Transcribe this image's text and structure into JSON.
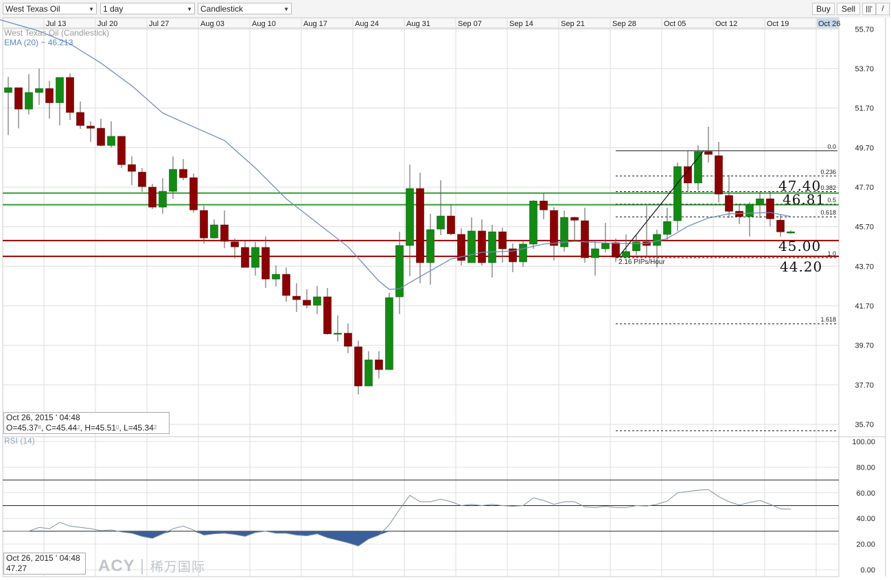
{
  "toolbar": {
    "instrument": "West Texas Oil",
    "interval": "1 day",
    "chart_type": "Candlestick",
    "buy_label": "Buy",
    "sell_label": "Sell",
    "icons": [
      "bar-chart-icon",
      "draw-line-icon"
    ]
  },
  "legend": {
    "series_label": "West Texas Oil (Candlestick)",
    "ema_label": "EMA (20) ~ 46.213",
    "rsi_label": "RSI (14)"
  },
  "info": {
    "datetime": "Oct 26, 2015 ' 04:48",
    "ohlc": [
      {
        "k": "O=",
        "v": "45.37",
        "s": "8"
      },
      {
        "k": ", C=",
        "v": "45.44",
        "s": "2"
      },
      {
        "k": ", H=",
        "v": "45.51",
        "s": "0"
      },
      {
        "k": ", L=",
        "v": "45.34",
        "s": "2"
      }
    ],
    "rsi_datetime": "Oct 26, 2015 ' 04:48",
    "rsi_value": "47.27"
  },
  "annotations": {
    "levels": [
      {
        "label": "47.40",
        "value": 47.4,
        "color": "#2e9e2e"
      },
      {
        "label": "46.81",
        "value": 46.81,
        "color": "#2e9e2e"
      },
      {
        "label": "45.00",
        "value": 45.0,
        "color": "#a00000"
      },
      {
        "label": "44.20",
        "value": 44.2,
        "color": "#a00000"
      }
    ],
    "fib": {
      "high": 49.54,
      "low": 44.13,
      "levels": [
        {
          "ratio": 0.0,
          "label": "0.0"
        },
        {
          "ratio": 0.236,
          "label": "0.236"
        },
        {
          "ratio": 0.382,
          "label": "0.382"
        },
        {
          "ratio": 0.5,
          "label": "0.5"
        },
        {
          "ratio": 0.618,
          "label": "0.618"
        },
        {
          "ratio": 1.0,
          "label": "1.0"
        },
        {
          "ratio": 1.618,
          "label": "1.618"
        },
        {
          "ratio": 2.618,
          "label": ""
        }
      ]
    },
    "trendline_label": "2.16 PIPs/Hour",
    "watermark_latin": "ACY",
    "watermark_cn": "稀万国际"
  },
  "chart_data": [
    {
      "type": "candlestick",
      "title": "West Texas Oil (Candlestick)",
      "x_ticks": [
        "Jul 13",
        "Jul 20",
        "Jul 27",
        "Aug 03",
        "Aug 10",
        "Aug 17",
        "Aug 24",
        "Aug 31",
        "Sep 07",
        "Sep 14",
        "Sep 21",
        "Sep 28",
        "Oct 05",
        "Oct 12",
        "Oct 19",
        "Oct 26"
      ],
      "x_tick_highlight": "Oct 26",
      "y_ticks": [
        "55.70",
        "53.70",
        "51.70",
        "49.70",
        "47.70",
        "45.70",
        "43.70",
        "41.70",
        "39.70",
        "37.70",
        "35.70"
      ],
      "ylim": [
        35.0,
        55.75
      ],
      "grid": true,
      "colors": {
        "up": "#138a13",
        "down": "#8b0000",
        "ema": "#6d8fc4"
      },
      "candles_ohlc": [
        [
          52.49,
          53.28,
          50.34,
          52.73
        ],
        [
          52.73,
          52.73,
          50.68,
          51.65
        ],
        [
          51.65,
          53.42,
          51.38,
          52.49
        ],
        [
          52.49,
          53.7,
          51.86,
          52.69
        ],
        [
          52.69,
          53.08,
          51.17,
          51.97
        ],
        [
          51.97,
          53.25,
          50.82,
          53.25
        ],
        [
          53.25,
          53.46,
          51.1,
          51.48
        ],
        [
          51.48,
          52.03,
          50.65,
          50.82
        ],
        [
          50.79,
          51.03,
          49.99,
          50.68
        ],
        [
          50.68,
          51.17,
          49.78,
          49.81
        ],
        [
          49.81,
          51.03,
          49.71,
          50.27
        ],
        [
          50.27,
          50.27,
          48.67,
          48.84
        ],
        [
          48.84,
          49.26,
          47.8,
          48.5
        ],
        [
          48.46,
          48.67,
          47.46,
          47.73
        ],
        [
          47.7,
          47.87,
          46.59,
          46.69
        ],
        [
          46.69,
          48.15,
          46.35,
          47.49
        ],
        [
          47.49,
          49.26,
          47.11,
          48.6
        ],
        [
          48.6,
          49.12,
          48.05,
          48.18
        ],
        [
          48.18,
          48.39,
          46.41,
          46.55
        ],
        [
          46.52,
          46.76,
          44.85,
          45.13
        ],
        [
          45.13,
          46.07,
          45.1,
          45.79
        ],
        [
          45.79,
          46.52,
          44.61,
          44.96
        ],
        [
          44.93,
          45.1,
          44.09,
          44.68
        ],
        [
          44.65,
          44.96,
          43.64,
          43.64
        ],
        [
          43.64,
          44.93,
          43.22,
          44.65
        ],
        [
          44.65,
          45.2,
          42.6,
          43.05
        ],
        [
          43.05,
          43.74,
          42.67,
          43.29
        ],
        [
          43.29,
          43.64,
          41.9,
          42.22
        ],
        [
          42.18,
          42.84,
          41.38,
          42.01
        ],
        [
          41.98,
          42.53,
          41.56,
          41.73
        ],
        [
          41.73,
          42.7,
          41.28,
          42.15
        ],
        [
          42.15,
          42.6,
          40.24,
          40.28
        ],
        [
          40.28,
          41.21,
          39.89,
          40.31
        ],
        [
          40.31,
          40.8,
          39.3,
          39.65
        ],
        [
          39.62,
          39.93,
          37.22,
          37.64
        ],
        [
          37.64,
          39.4,
          37.64,
          38.96
        ],
        [
          38.96,
          39.4,
          38.02,
          38.47
        ],
        [
          38.47,
          42.36,
          38.47,
          42.11
        ],
        [
          42.15,
          45.44,
          41.28,
          44.75
        ],
        [
          44.75,
          48.84,
          43.19,
          47.63
        ],
        [
          47.63,
          48.43,
          42.84,
          43.88
        ],
        [
          43.88,
          46.35,
          42.77,
          45.55
        ],
        [
          45.58,
          48.05,
          45.27,
          46.24
        ],
        [
          46.24,
          46.83,
          45.27,
          45.34
        ],
        [
          45.31,
          45.62,
          43.74,
          43.99
        ],
        [
          43.88,
          46.17,
          43.88,
          45.48
        ],
        [
          45.48,
          46.07,
          43.74,
          43.88
        ],
        [
          43.88,
          45.79,
          43.12,
          45.44
        ],
        [
          45.44,
          45.65,
          43.88,
          44.58
        ],
        [
          44.58,
          44.85,
          43.4,
          43.92
        ],
        [
          43.92,
          44.96,
          43.67,
          44.82
        ],
        [
          44.82,
          47.04,
          44.58,
          47.0
        ],
        [
          47.0,
          47.39,
          46.07,
          46.55
        ],
        [
          46.52,
          46.69,
          43.99,
          44.75
        ],
        [
          44.68,
          46.52,
          44.44,
          46.17
        ],
        [
          46.17,
          46.21,
          45.03,
          46.03
        ],
        [
          46.0,
          46.66,
          43.88,
          44.13
        ],
        [
          44.13,
          45.03,
          43.22,
          44.58
        ],
        [
          44.58,
          45.89,
          44.41,
          44.85
        ],
        [
          44.89,
          45.1,
          43.91,
          44.16
        ],
        [
          44.16,
          45.31,
          44.09,
          44.44
        ],
        [
          44.48,
          45.27,
          44.27,
          44.93
        ],
        [
          44.93,
          46.76,
          44.23,
          44.75
        ],
        [
          44.75,
          45.55,
          43.64,
          45.31
        ],
        [
          45.31,
          46.66,
          45.03,
          45.96
        ],
        [
          46.0,
          48.95,
          45.48,
          48.74
        ],
        [
          48.74,
          49.54,
          47.46,
          47.91
        ],
        [
          47.91,
          49.81,
          47.53,
          49.5
        ],
        [
          49.5,
          50.75,
          48.95,
          49.36
        ],
        [
          49.29,
          49.99,
          46.93,
          47.35
        ],
        [
          47.28,
          48.32,
          46.14,
          46.48
        ],
        [
          46.48,
          46.87,
          45.83,
          46.21
        ],
        [
          46.21,
          46.93,
          45.2,
          46.83
        ],
        [
          46.8,
          47.46,
          46.14,
          47.11
        ],
        [
          47.11,
          47.46,
          45.72,
          46.1
        ],
        [
          46.03,
          46.31,
          45.2,
          45.44
        ],
        [
          45.378,
          45.51,
          45.342,
          45.442
        ]
      ],
      "ema20_points": [
        [
          4,
          55.6
        ],
        [
          7,
          54.95
        ],
        [
          10,
          53.98
        ],
        [
          13,
          52.83
        ],
        [
          16,
          51.45
        ],
        [
          19,
          50.75
        ],
        [
          22,
          50.06
        ],
        [
          25,
          48.67
        ],
        [
          28,
          47.11
        ],
        [
          31,
          45.89
        ],
        [
          34,
          44.68
        ],
        [
          37,
          42.95
        ],
        [
          38,
          42.53
        ],
        [
          39,
          42.56
        ],
        [
          40,
          42.87
        ],
        [
          42,
          43.47
        ],
        [
          44,
          44.06
        ],
        [
          47,
          44.4
        ],
        [
          50,
          44.47
        ],
        [
          53,
          44.82
        ],
        [
          56,
          44.96
        ],
        [
          60,
          44.85
        ],
        [
          63,
          44.85
        ],
        [
          65,
          45.1
        ],
        [
          67,
          45.72
        ],
        [
          69,
          46.14
        ],
        [
          71,
          46.35
        ],
        [
          73,
          46.38
        ],
        [
          75,
          46.42
        ],
        [
          77,
          46.21
        ]
      ]
    },
    {
      "type": "line",
      "title": "RSI (14)",
      "y_ticks": [
        "100.00",
        "80.00",
        "60.00",
        "40.00",
        "20.00",
        "0.00"
      ],
      "ylim": [
        0,
        100
      ],
      "reference_lines": [
        70,
        50,
        30
      ],
      "fill_below": 30,
      "colors": {
        "line": "#7f8fa8",
        "fill": "#3a5f9a"
      },
      "values": [
        30,
        30,
        30,
        33,
        32,
        37,
        34,
        33,
        32,
        30.5,
        31,
        29.5,
        28.5,
        26,
        24.5,
        28,
        32,
        34,
        31,
        27,
        28,
        28.5,
        27.5,
        26,
        29,
        30,
        28.5,
        28.5,
        27,
        26.5,
        28,
        25,
        23,
        21,
        18.5,
        24,
        27,
        35,
        47,
        58,
        53,
        53,
        55,
        53,
        50,
        51,
        50,
        51,
        50,
        49.5,
        50,
        56,
        54,
        51,
        53,
        53,
        49,
        48.5,
        49.5,
        48.5,
        48.5,
        50,
        49.7,
        51,
        53.5,
        60,
        61,
        62,
        62.5,
        57,
        53,
        50.5,
        52.5,
        54,
        51,
        47.5,
        47.27
      ]
    }
  ]
}
